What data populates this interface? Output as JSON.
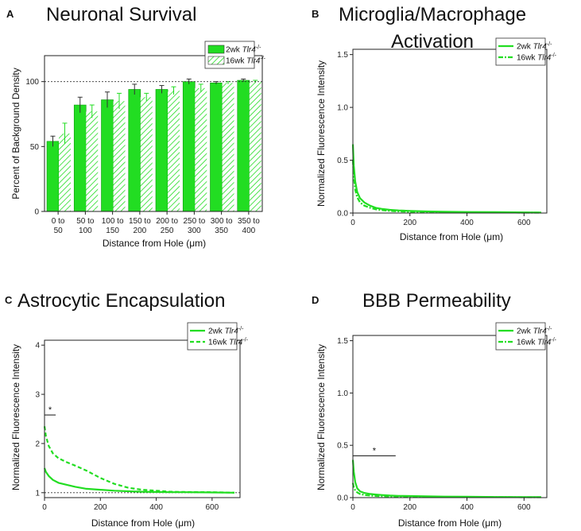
{
  "chart_data": [
    {
      "panel": "A",
      "type": "bar",
      "title": "Neuronal Survival",
      "xlabel": "Distance from Hole (μm)",
      "ylabel": "Percent of Background Density",
      "ylim": [
        0,
        120
      ],
      "yticks": [
        0,
        50,
        100
      ],
      "reference_line": 100,
      "categories": [
        [
          "0 to",
          "50"
        ],
        [
          "50 to",
          "100"
        ],
        [
          "100 to",
          "150"
        ],
        [
          "150 to",
          "200"
        ],
        [
          "200 to",
          "250"
        ],
        [
          "250 to",
          "300"
        ],
        [
          "300 to",
          "350"
        ],
        [
          "350 to",
          "400"
        ]
      ],
      "series": [
        {
          "name": "2wk Tlr4",
          "superscript": "-/-",
          "values": [
            54,
            82,
            86,
            94,
            94,
            100,
            99,
            101
          ],
          "errors": [
            4,
            6,
            6,
            4,
            3,
            2,
            1,
            1
          ],
          "color": "#22dd22",
          "pattern": "solid"
        },
        {
          "name": "16wk Tlr4",
          "superscript": "-/-",
          "values": [
            60,
            77,
            85,
            88,
            93,
            95,
            99,
            100
          ],
          "errors": [
            8,
            5,
            6,
            3,
            3,
            3,
            1,
            1
          ],
          "color": "#22dd22",
          "pattern": "hatched"
        }
      ],
      "legend_position": "top-right"
    },
    {
      "panel": "B",
      "type": "line",
      "title_lines": [
        "Microglia/Macrophage",
        "Activation"
      ],
      "xlabel": "Distance from Hole (μm)",
      "ylabel": "Normalized Fluorescence Intensity",
      "xlim": [
        0,
        680
      ],
      "ylim": [
        0,
        1.55
      ],
      "xticks": [
        0,
        200,
        400,
        600
      ],
      "yticks": [
        0.0,
        0.5,
        1.0,
        1.5
      ],
      "ytick_labels": [
        "0.0",
        "0.5",
        "1.0",
        "1.5"
      ],
      "series": [
        {
          "name": "2wk Tlr4",
          "superscript": "-/-",
          "style": "solid",
          "x": [
            0,
            3,
            8,
            15,
            25,
            40,
            60,
            80,
            100,
            130,
            160,
            200,
            260,
            320,
            400,
            500,
            600,
            660
          ],
          "y": [
            0.65,
            0.45,
            0.3,
            0.2,
            0.14,
            0.1,
            0.07,
            0.05,
            0.04,
            0.03,
            0.025,
            0.02,
            0.015,
            0.012,
            0.01,
            0.008,
            0.006,
            0.005
          ]
        },
        {
          "name": "16wk Tlr4",
          "superscript": "-/-",
          "style": "dashdot",
          "x": [
            0,
            3,
            8,
            15,
            25,
            40,
            60,
            80,
            100,
            130,
            160,
            200,
            260,
            320,
            400,
            500,
            600,
            660
          ],
          "y": [
            0.5,
            0.35,
            0.22,
            0.15,
            0.1,
            0.07,
            0.05,
            0.035,
            0.028,
            0.02,
            0.016,
            0.012,
            0.01,
            0.008,
            0.006,
            0.005,
            0.004,
            0.004
          ]
        }
      ],
      "legend_position": "top-right"
    },
    {
      "panel": "C",
      "type": "line",
      "title": "Astrocytic Encapsulation",
      "xlabel": "Distance from Hole (μm)",
      "ylabel": "Normalized Fluorescence Intensity",
      "xlim": [
        0,
        700
      ],
      "ylim": [
        0.9,
        4.1
      ],
      "xticks": [
        0,
        200,
        400,
        600
      ],
      "yticks": [
        1,
        2,
        3,
        4
      ],
      "ytick_labels": [
        "1",
        "2",
        "3",
        "4"
      ],
      "reference_line": 1,
      "significance": {
        "label": "*",
        "x_range": [
          0,
          40
        ],
        "y": 2.58
      },
      "series": [
        {
          "name": "2wk Tlr4",
          "superscript": "-/-",
          "style": "solid",
          "x": [
            0,
            5,
            15,
            30,
            50,
            80,
            110,
            150,
            200,
            250,
            300,
            350,
            400,
            450,
            500,
            600,
            680
          ],
          "y": [
            1.5,
            1.42,
            1.34,
            1.26,
            1.2,
            1.16,
            1.12,
            1.08,
            1.06,
            1.04,
            1.03,
            1.02,
            1.015,
            1.01,
            1.01,
            1.005,
            1.0
          ]
        },
        {
          "name": "16wk Tlr4",
          "superscript": "-/-",
          "style": "dashed",
          "x": [
            0,
            5,
            15,
            30,
            50,
            80,
            110,
            150,
            200,
            250,
            300,
            350,
            400,
            450,
            500,
            600,
            680
          ],
          "y": [
            2.35,
            2.15,
            1.95,
            1.8,
            1.7,
            1.62,
            1.55,
            1.45,
            1.3,
            1.18,
            1.1,
            1.06,
            1.04,
            1.02,
            1.015,
            1.01,
            1.0
          ]
        }
      ],
      "legend_position": "top-right"
    },
    {
      "panel": "D",
      "type": "line",
      "title": "BBB Permeability",
      "xlabel": "Distance from Hole (μm)",
      "ylabel": "Normalized Fluorescence Intensity",
      "xlim": [
        0,
        680
      ],
      "ylim": [
        0,
        1.55
      ],
      "xticks": [
        0,
        200,
        400,
        600
      ],
      "yticks": [
        0.0,
        0.5,
        1.0,
        1.5
      ],
      "ytick_labels": [
        "0.0",
        "0.5",
        "1.0",
        "1.5"
      ],
      "significance": {
        "label": "*",
        "x_range": [
          0,
          150
        ],
        "y": 0.4
      },
      "series": [
        {
          "name": "2wk Tlr4",
          "superscript": "-/-",
          "style": "solid",
          "x": [
            0,
            3,
            8,
            15,
            25,
            40,
            60,
            80,
            100,
            130,
            160,
            200,
            260,
            320,
            400,
            500,
            600,
            660
          ],
          "y": [
            0.36,
            0.25,
            0.15,
            0.09,
            0.06,
            0.045,
            0.035,
            0.03,
            0.025,
            0.02,
            0.017,
            0.015,
            0.012,
            0.01,
            0.008,
            0.006,
            0.005,
            0.005
          ]
        },
        {
          "name": "16wk Tlr4",
          "superscript": "-/-",
          "style": "dashdot",
          "x": [
            0,
            3,
            8,
            15,
            25,
            40,
            60,
            80,
            100,
            130,
            160,
            200,
            260,
            320,
            400,
            500,
            600,
            660
          ],
          "y": [
            0.14,
            0.1,
            0.07,
            0.05,
            0.035,
            0.025,
            0.02,
            0.016,
            0.014,
            0.012,
            0.01,
            0.009,
            0.008,
            0.007,
            0.006,
            0.005,
            0.004,
            0.004
          ]
        }
      ],
      "legend_position": "top-right"
    }
  ]
}
